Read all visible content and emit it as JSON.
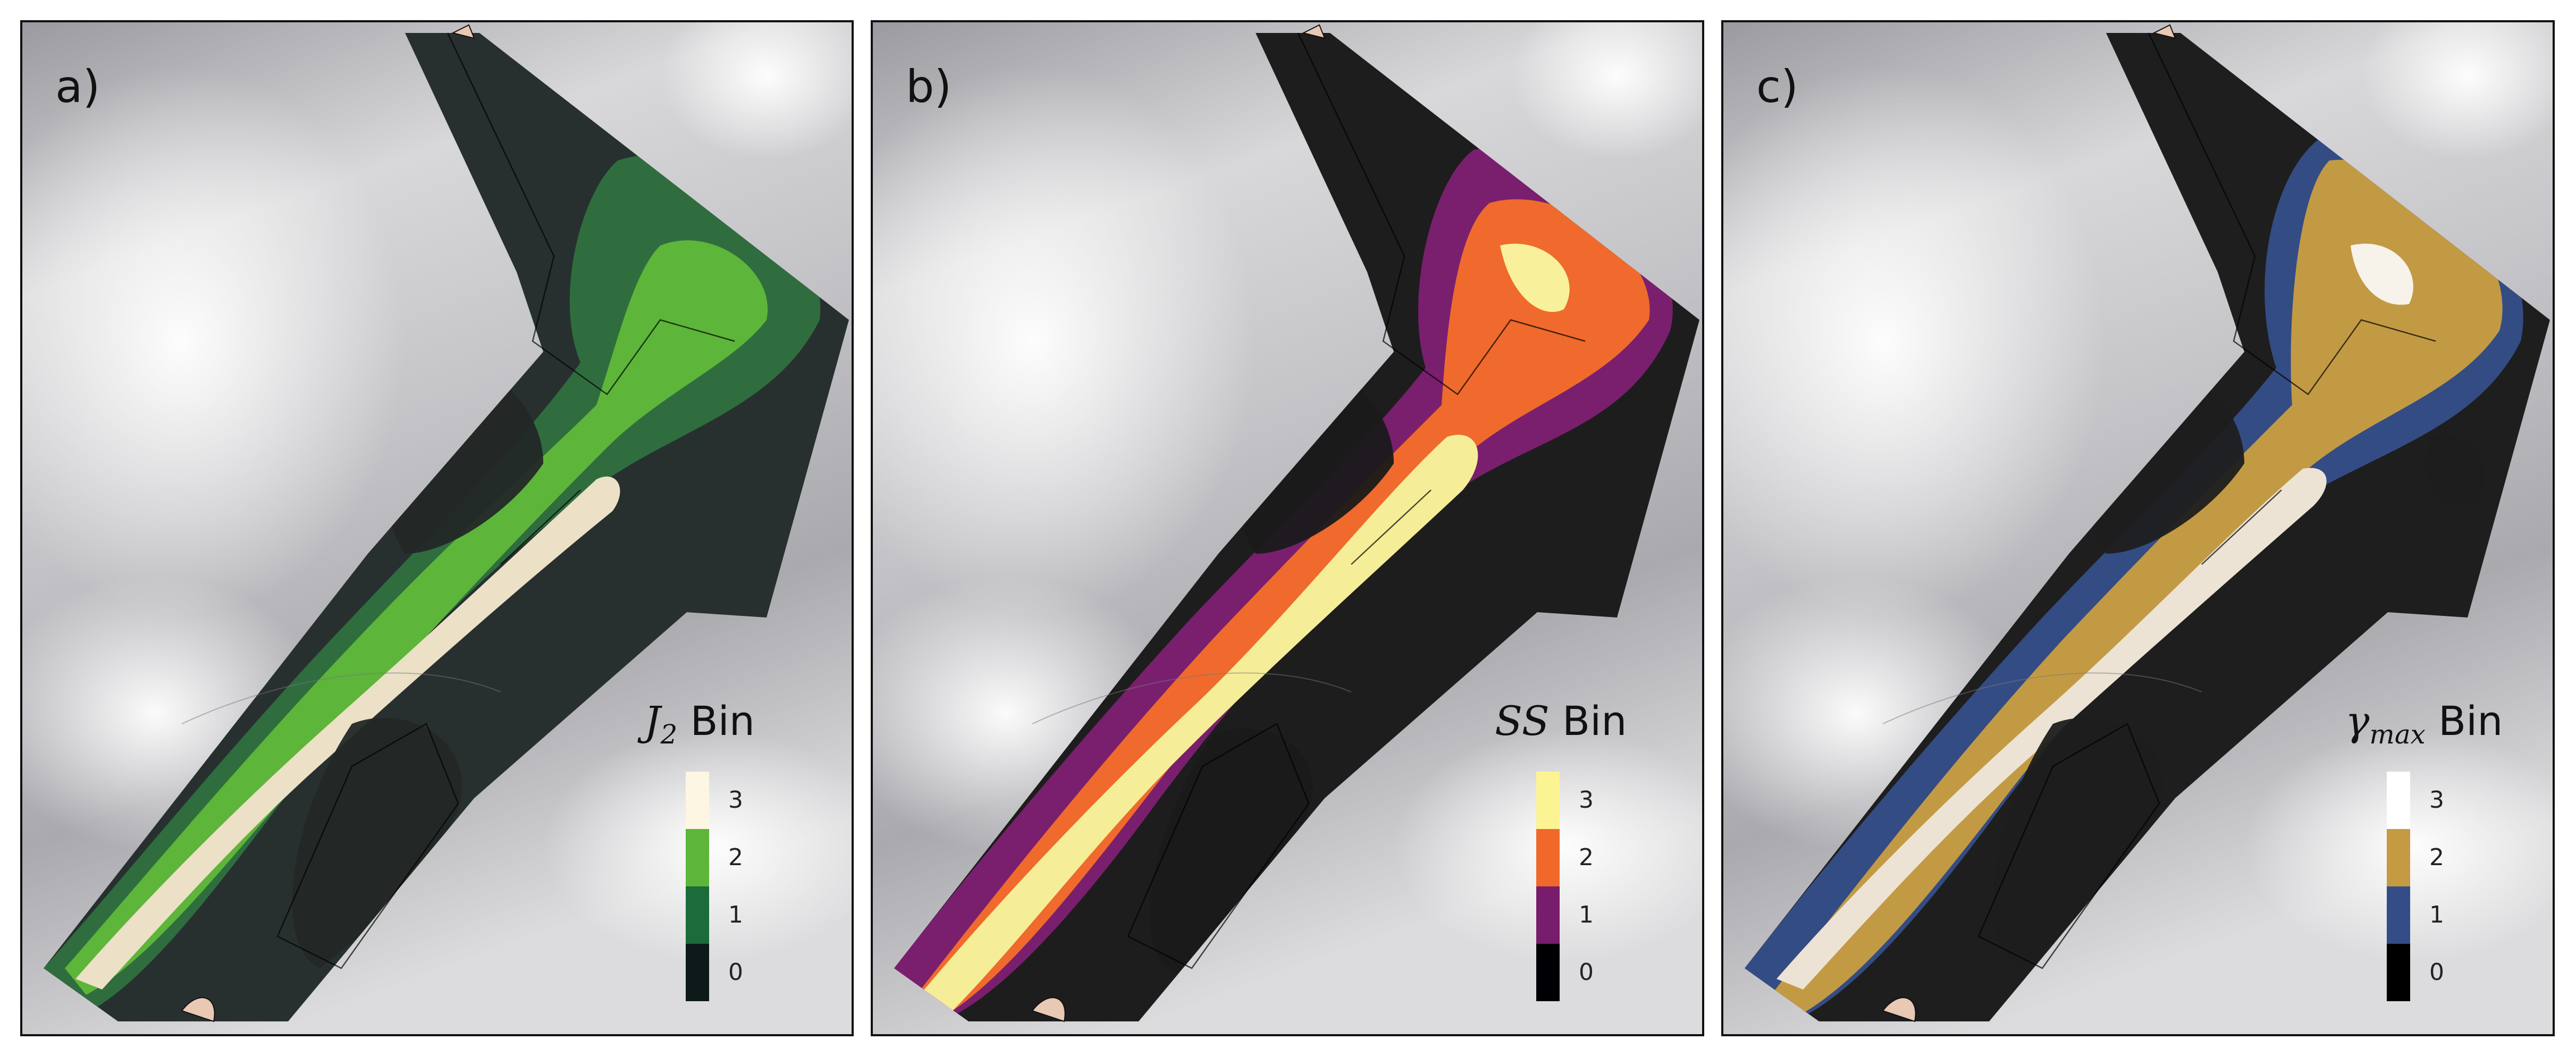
{
  "panels": [
    {
      "label": "a)",
      "legend": {
        "symbol": "J",
        "subscript": "2",
        "title_suffix": " Bin",
        "bins": [
          {
            "label": "3",
            "color": "#fdf6e3"
          },
          {
            "label": "2",
            "color": "#5db53a"
          },
          {
            "label": "1",
            "color": "#1c6b3b"
          },
          {
            "label": "0",
            "color": "#0e1a1a"
          }
        ]
      }
    },
    {
      "label": "b)",
      "legend": {
        "symbol": "SS",
        "subscript": "",
        "title_suffix": " Bin",
        "bins": [
          {
            "label": "3",
            "color": "#fcf492"
          },
          {
            "label": "2",
            "color": "#f0682a"
          },
          {
            "label": "1",
            "color": "#781c6c"
          },
          {
            "label": "0",
            "color": "#000004"
          }
        ]
      }
    },
    {
      "label": "c)",
      "legend": {
        "symbol": "γ",
        "subscript": "max",
        "title_suffix": " Bin",
        "bins": [
          {
            "label": "3",
            "color": "#ffffff"
          },
          {
            "label": "2",
            "color": "#c49a43"
          },
          {
            "label": "1",
            "color": "#344d86"
          },
          {
            "label": "0",
            "color": "#000000"
          }
        ]
      }
    }
  ]
}
